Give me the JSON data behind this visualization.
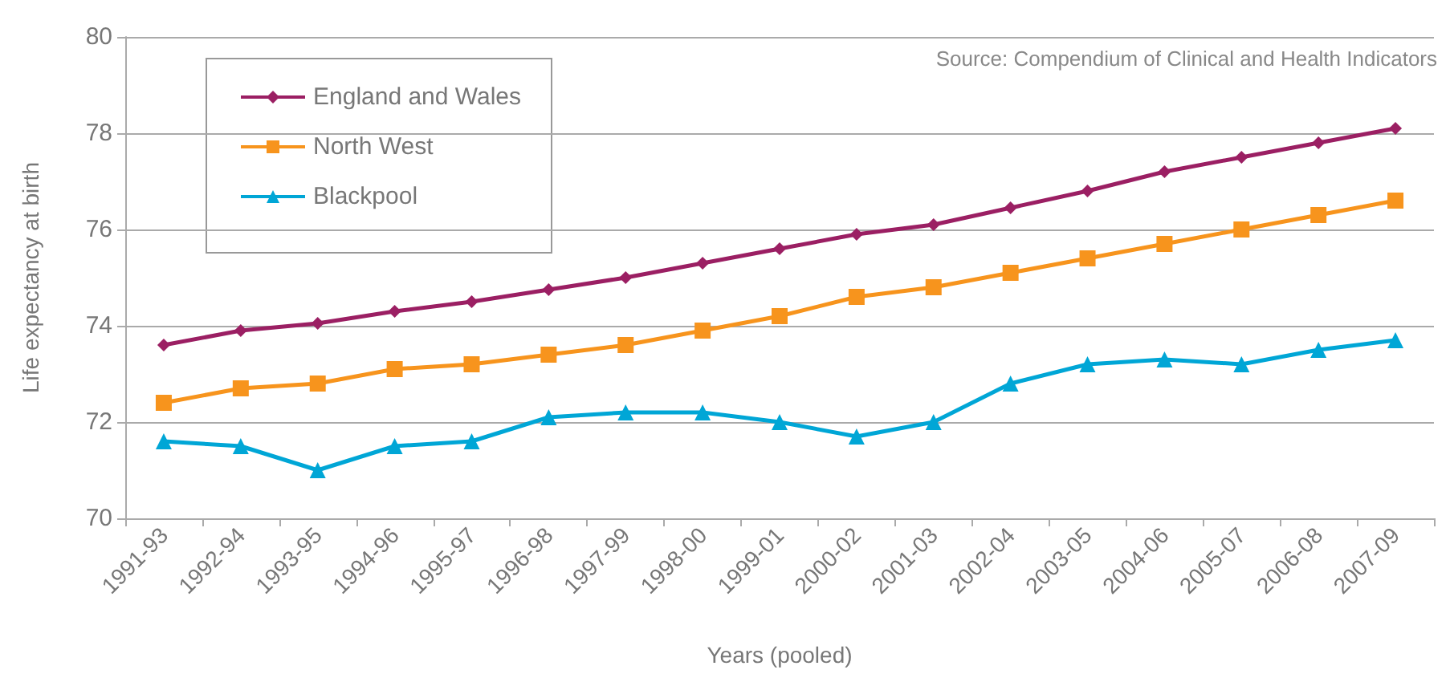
{
  "chart_data": {
    "type": "line",
    "xlabel": "Years (pooled)",
    "ylabel": "Life expectancy at birth",
    "annotations": [
      "Source: Compendium of Clinical and Health Indicators"
    ],
    "categories": [
      "1991-93",
      "1992-94",
      "1993-95",
      "1994-96",
      "1995-97",
      "1996-98",
      "1997-99",
      "1998-00",
      "1999-01",
      "2000-02",
      "2001-03",
      "2002-04",
      "2003-05",
      "2004-06",
      "2005-07",
      "2006-08",
      "2007-09"
    ],
    "series": [
      {
        "name": "England and Wales",
        "color": "#9b1f63",
        "marker": "diamond",
        "values": [
          73.6,
          73.9,
          74.05,
          74.3,
          74.5,
          74.75,
          75.0,
          75.3,
          75.6,
          75.9,
          76.1,
          76.45,
          76.8,
          77.2,
          77.5,
          77.8,
          78.1
        ]
      },
      {
        "name": "North West",
        "color": "#f7941d",
        "marker": "square",
        "values": [
          72.4,
          72.7,
          72.8,
          73.1,
          73.2,
          73.4,
          73.6,
          73.9,
          74.2,
          74.6,
          74.8,
          75.1,
          75.4,
          75.7,
          76.0,
          76.3,
          76.6
        ]
      },
      {
        "name": "Blackpool",
        "color": "#00a6d6",
        "marker": "triangle",
        "values": [
          71.6,
          71.5,
          71.0,
          71.5,
          71.6,
          72.1,
          72.2,
          72.2,
          72.0,
          71.7,
          72.0,
          72.8,
          73.2,
          73.3,
          73.2,
          73.5,
          73.7
        ]
      }
    ],
    "ylim": [
      70,
      80
    ],
    "yticks": [
      70,
      72,
      74,
      76,
      78,
      80
    ],
    "grid": "y",
    "legend": "top left"
  }
}
